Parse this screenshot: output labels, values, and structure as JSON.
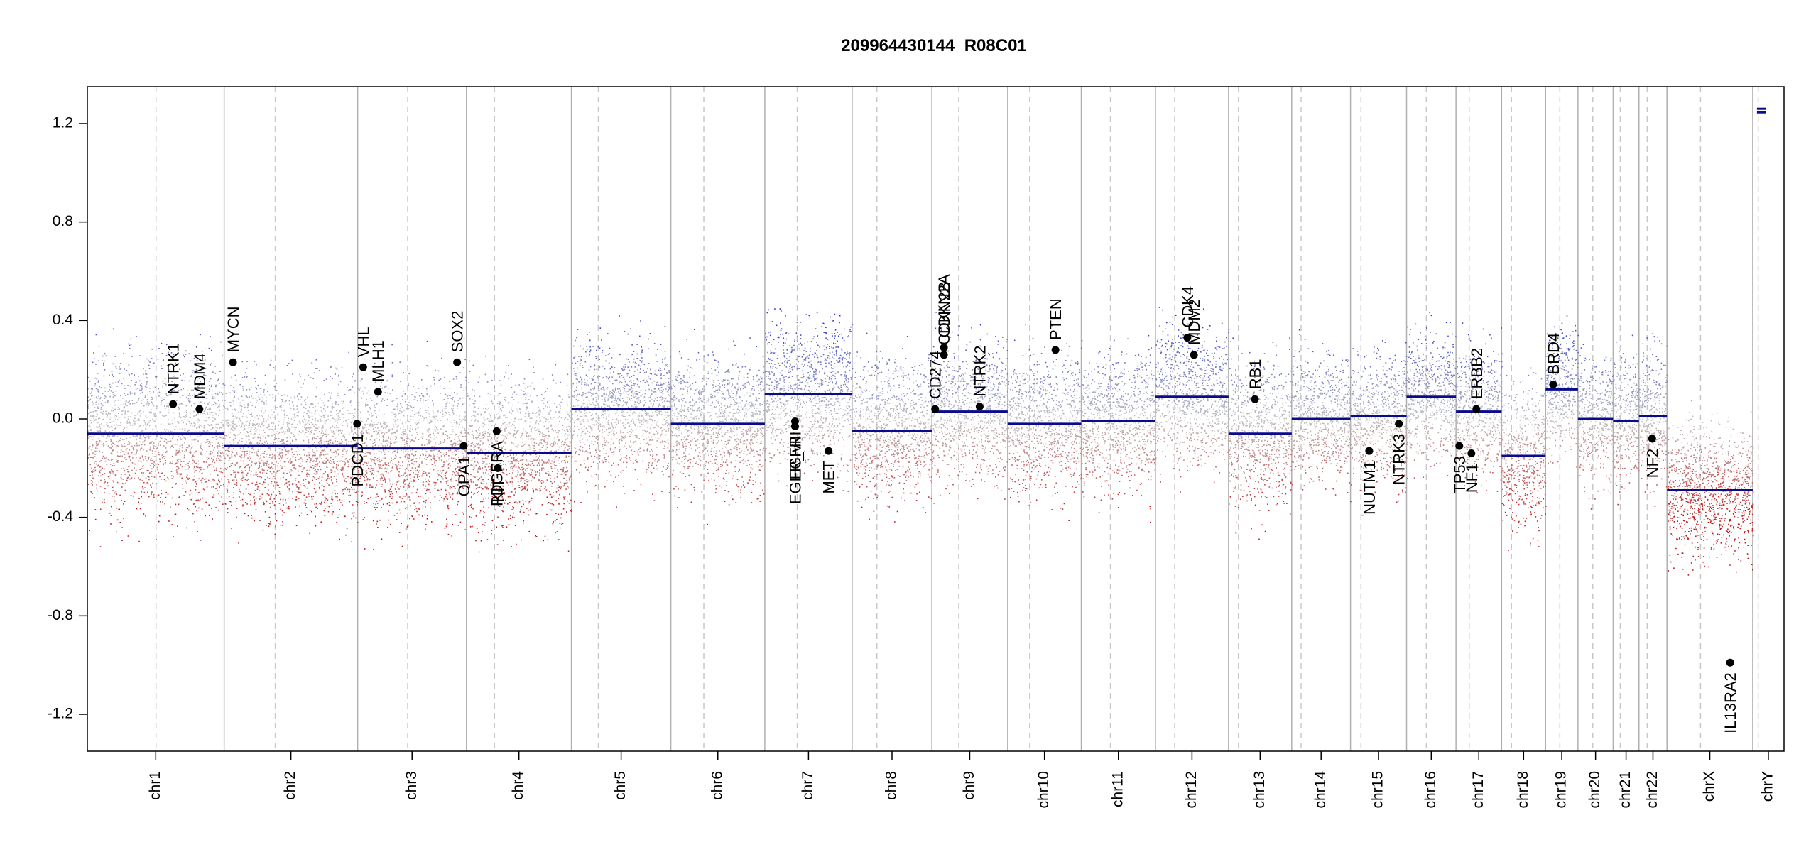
{
  "chart_data": {
    "type": "scatter",
    "title": "209964430144_R08C01",
    "xlabel": "",
    "ylabel": "",
    "ylim": [
      -1.35,
      1.35
    ],
    "yticks": [
      -1.2,
      -0.8,
      -0.4,
      0.0,
      0.4,
      0.8,
      1.2
    ],
    "ytick_labels": [
      "-1.2",
      "-0.8",
      "-0.4",
      "0.0",
      "0.4",
      "0.8",
      "1.2"
    ],
    "chromosomes": [
      {
        "name": "chr1",
        "start": 0,
        "end": 249,
        "centromere": 125,
        "segment": -0.06,
        "spread": 0.35
      },
      {
        "name": "chr2",
        "start": 249,
        "end": 492,
        "centromere": 342,
        "segment": -0.11,
        "spread": 0.32
      },
      {
        "name": "chr3",
        "start": 492,
        "end": 690,
        "centromere": 583,
        "segment": -0.12,
        "spread": 0.32
      },
      {
        "name": "chr4",
        "start": 690,
        "end": 881,
        "centromere": 741,
        "segment": -0.14,
        "spread": 0.33
      },
      {
        "name": "chr5",
        "start": 881,
        "end": 1062,
        "centromere": 930,
        "segment": 0.04,
        "spread": 0.3
      },
      {
        "name": "chr6",
        "start": 1062,
        "end": 1233,
        "centromere": 1122,
        "segment": -0.02,
        "spread": 0.3
      },
      {
        "name": "chr7",
        "start": 1233,
        "end": 1392,
        "centromere": 1292,
        "segment": 0.1,
        "spread": 0.32
      },
      {
        "name": "chr8",
        "start": 1392,
        "end": 1537,
        "centromere": 1437,
        "segment": -0.05,
        "spread": 0.3
      },
      {
        "name": "chr9",
        "start": 1537,
        "end": 1675,
        "centromere": 1586,
        "segment": 0.03,
        "spread": 0.3
      },
      {
        "name": "chr10",
        "start": 1675,
        "end": 1809,
        "centromere": 1715,
        "segment": -0.02,
        "spread": 0.3
      },
      {
        "name": "chr11",
        "start": 1809,
        "end": 1944,
        "centromere": 1862,
        "segment": -0.01,
        "spread": 0.3
      },
      {
        "name": "chr12",
        "start": 1944,
        "end": 2077,
        "centromere": 1979,
        "segment": 0.09,
        "spread": 0.3
      },
      {
        "name": "chr13",
        "start": 2077,
        "end": 2192,
        "centromere": 2095,
        "segment": -0.06,
        "spread": 0.32
      },
      {
        "name": "chr14",
        "start": 2192,
        "end": 2299,
        "centromere": 2209,
        "segment": 0.0,
        "spread": 0.28
      },
      {
        "name": "chr15",
        "start": 2299,
        "end": 2401,
        "centromere": 2318,
        "segment": 0.01,
        "spread": 0.28
      },
      {
        "name": "chr16",
        "start": 2401,
        "end": 2491,
        "centromere": 2437,
        "segment": 0.09,
        "spread": 0.28
      },
      {
        "name": "chr17",
        "start": 2491,
        "end": 2574,
        "centromere": 2515,
        "segment": 0.03,
        "spread": 0.28
      },
      {
        "name": "chr18",
        "start": 2574,
        "end": 2654,
        "centromere": 2592,
        "segment": -0.15,
        "spread": 0.3
      },
      {
        "name": "chr19",
        "start": 2654,
        "end": 2713,
        "centromere": 2680,
        "segment": 0.12,
        "spread": 0.28
      },
      {
        "name": "chr20",
        "start": 2713,
        "end": 2777,
        "centromere": 2740,
        "segment": 0.0,
        "spread": 0.28
      },
      {
        "name": "chr21",
        "start": 2777,
        "end": 2824,
        "centromere": 2790,
        "segment": -0.01,
        "spread": 0.28
      },
      {
        "name": "chr22",
        "start": 2824,
        "end": 2875,
        "centromere": 2839,
        "segment": 0.01,
        "spread": 0.28
      },
      {
        "name": "chrX",
        "start": 2875,
        "end": 3031,
        "centromere": 2936,
        "segment": -0.29,
        "spread": 0.3
      },
      {
        "name": "chrY",
        "start": 3031,
        "end": 3088,
        "centromere": 3041,
        "segment": 1.26,
        "spread": 0.05
      }
    ],
    "genes": [
      {
        "name": "NTRK1",
        "x": 156,
        "y": 0.06
      },
      {
        "name": "MDM4",
        "x": 204,
        "y": 0.04
      },
      {
        "name": "MYCN",
        "x": 265,
        "y": 0.23
      },
      {
        "name": "PDCD1",
        "x": 491,
        "y": -0.02
      },
      {
        "name": "VHL",
        "x": 502,
        "y": 0.21
      },
      {
        "name": "MLH1",
        "x": 529,
        "y": 0.11
      },
      {
        "name": "SOX2",
        "x": 673,
        "y": 0.23
      },
      {
        "name": "OPA1",
        "x": 685,
        "y": -0.11
      },
      {
        "name": "PDGFRA",
        "x": 745,
        "y": -0.05
      },
      {
        "name": "KIT",
        "x": 747,
        "y": -0.2
      },
      {
        "name": "EGFR",
        "x": 1288,
        "y": -0.03
      },
      {
        "name": "EGFR_vIII",
        "x": 1288,
        "y": -0.01
      },
      {
        "name": "MET",
        "x": 1349,
        "y": -0.13
      },
      {
        "name": "CD274",
        "x": 1543,
        "y": 0.04
      },
      {
        "name": "CDKN2A",
        "x": 1559,
        "y": 0.29
      },
      {
        "name": "CDKN2B",
        "x": 1559,
        "y": 0.26
      },
      {
        "name": "NTRK2",
        "x": 1624,
        "y": 0.05
      },
      {
        "name": "PTEN",
        "x": 1762,
        "y": 0.28
      },
      {
        "name": "CDK4",
        "x": 2002,
        "y": 0.33
      },
      {
        "name": "MDM2",
        "x": 2014,
        "y": 0.26
      },
      {
        "name": "RB1",
        "x": 2125,
        "y": 0.08
      },
      {
        "name": "NUTM1",
        "x": 2333,
        "y": -0.13
      },
      {
        "name": "NTRK3",
        "x": 2387,
        "y": -0.02
      },
      {
        "name": "TP53",
        "x": 2497,
        "y": -0.11
      },
      {
        "name": "NF1",
        "x": 2519,
        "y": -0.14
      },
      {
        "name": "ERBB2",
        "x": 2528,
        "y": 0.04
      },
      {
        "name": "BRD4",
        "x": 2668,
        "y": 0.14
      },
      {
        "name": "NF2",
        "x": 2848,
        "y": -0.08
      },
      {
        "name": "IL13RA2",
        "x": 2990,
        "y": -0.99
      }
    ]
  }
}
